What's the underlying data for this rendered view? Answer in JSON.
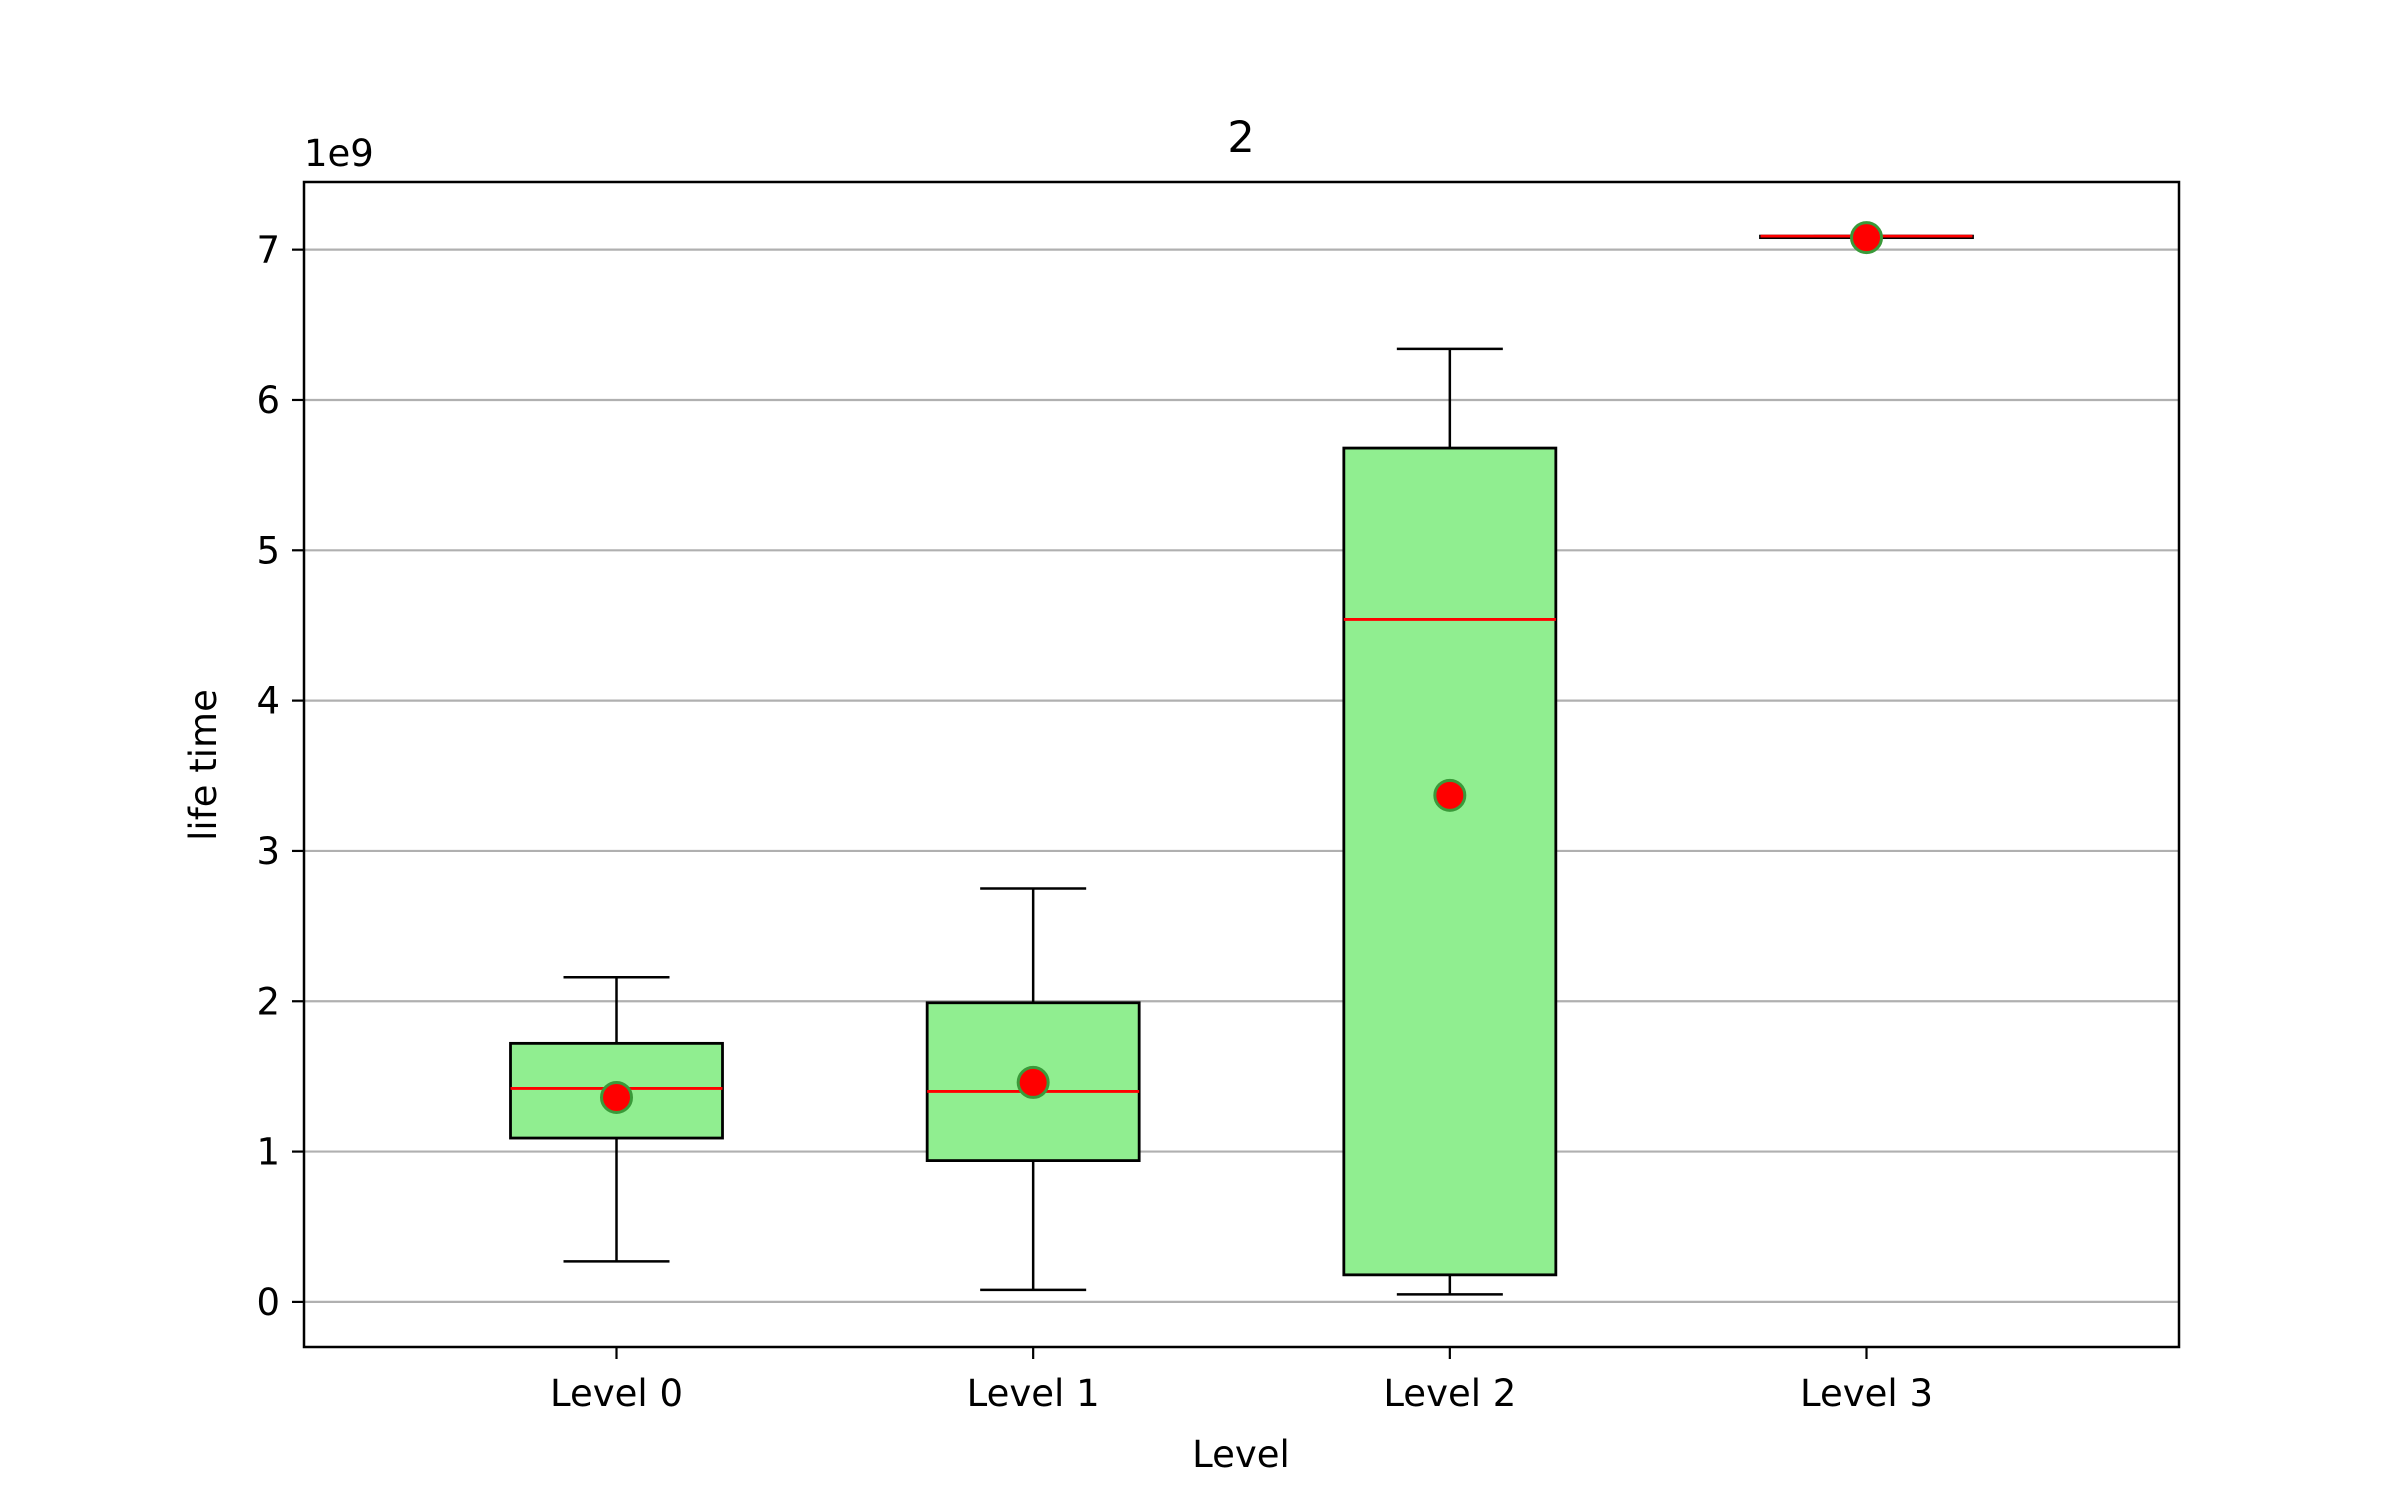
{
  "chart_data": {
    "type": "box",
    "title": "2",
    "xlabel": "Level",
    "ylabel": "life time",
    "y_offset_text": "1e9",
    "y_multiplier": 1000000000,
    "ylim": [
      -0.3,
      7.45
    ],
    "yticks": [
      0,
      1,
      2,
      3,
      4,
      5,
      6,
      7
    ],
    "grid": "y",
    "categories": [
      "Level 0",
      "Level 1",
      "Level 2",
      "Level 3"
    ],
    "boxes": [
      {
        "category": "Level 0",
        "whisker_low": 0.27,
        "q1": 1.09,
        "median": 1.42,
        "q3": 1.72,
        "whisker_high": 2.16,
        "mean": 1.36
      },
      {
        "category": "Level 1",
        "whisker_low": 0.08,
        "q1": 0.94,
        "median": 1.4,
        "q3": 1.99,
        "whisker_high": 2.75,
        "mean": 1.46
      },
      {
        "category": "Level 2",
        "whisker_low": 0.05,
        "q1": 0.18,
        "median": 4.54,
        "q3": 5.68,
        "whisker_high": 6.34,
        "mean": 3.37
      },
      {
        "category": "Level 3",
        "whisker_low": 7.08,
        "q1": 7.08,
        "median": 7.09,
        "q3": 7.09,
        "whisker_high": 7.09,
        "mean": 7.08
      }
    ],
    "colors": {
      "box_fill": "#90ee90",
      "box_edge": "#000000",
      "median": "#ff0000",
      "mean_marker": "#ff0000",
      "mean_marker_edge": "#3a9a3a",
      "grid": "#b0b0b0"
    }
  }
}
